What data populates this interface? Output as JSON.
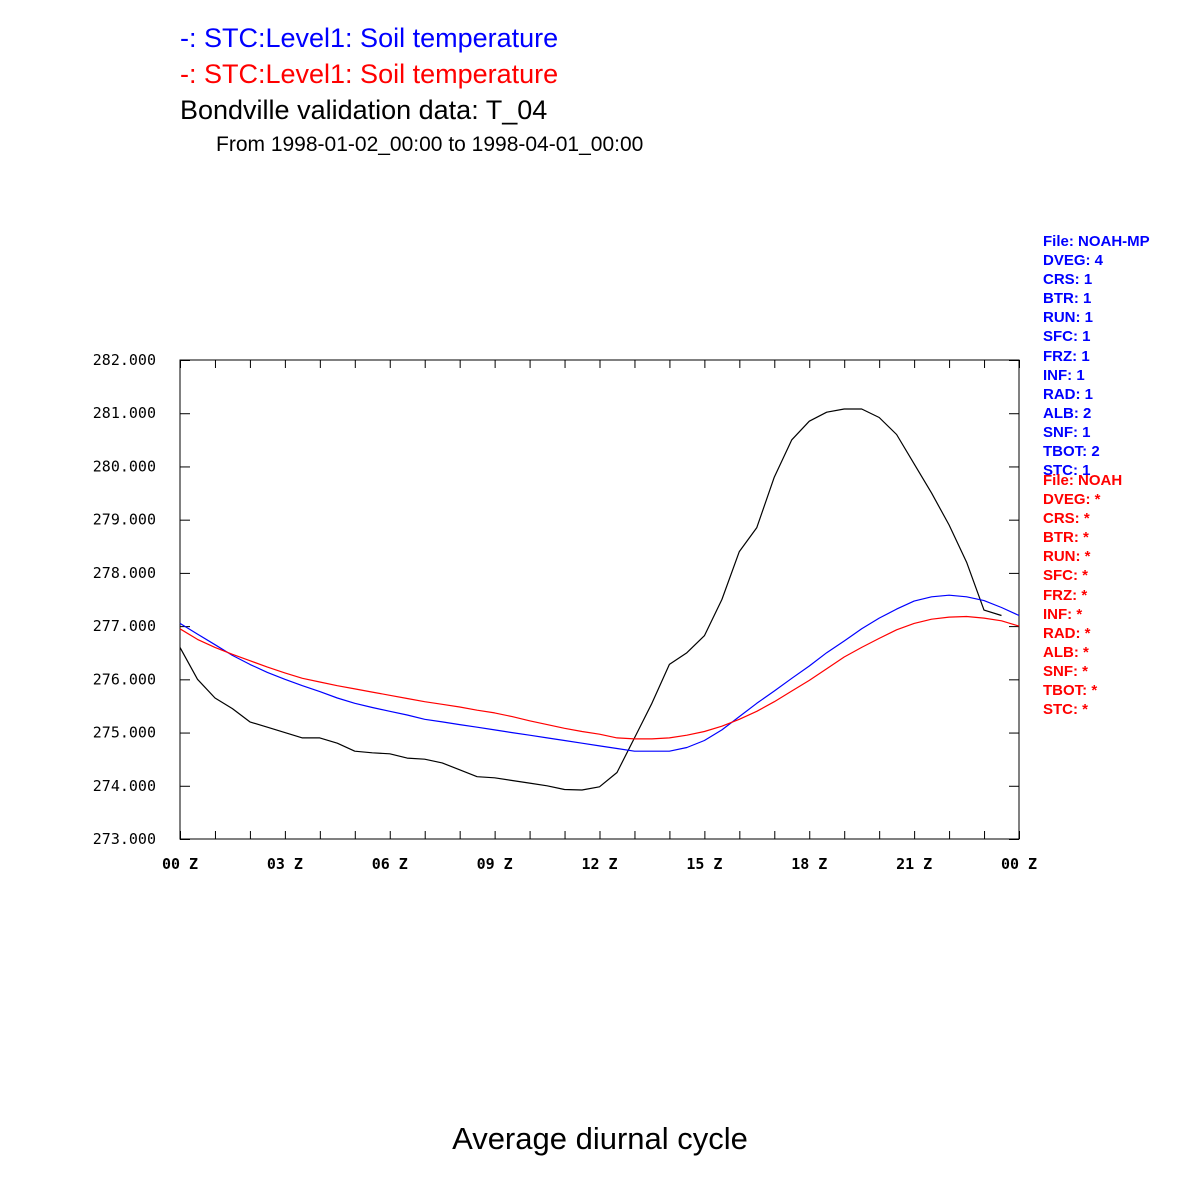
{
  "legend": [
    {
      "label": "-: STC:Level1: Soil temperature",
      "color": "#0000ff"
    },
    {
      "label": "-: STC:Level1: Soil temperature",
      "color": "#ff0000"
    }
  ],
  "title": "Bondville validation data: T_04",
  "subtitle": "From 1998-01-02_00:00 to 1998-04-01_00:00",
  "bottom_title": "Average diurnal cycle",
  "file_info": [
    {
      "color": "#0000ff",
      "lines": [
        "File: NOAH-MP",
        "DVEG: 4",
        "CRS: 1",
        "BTR: 1",
        "RUN: 1",
        "SFC: 1",
        "FRZ: 1",
        "INF: 1",
        "RAD: 1",
        "ALB: 2",
        "SNF: 1",
        "TBOT: 2",
        "STC: 1"
      ]
    },
    {
      "color": "#ff0000",
      "lines": [
        "File: NOAH",
        "DVEG: *",
        "CRS: *",
        "BTR: *",
        "RUN: *",
        "SFC: *",
        "FRZ: *",
        "INF: *",
        "RAD: *",
        "ALB: *",
        "SNF: *",
        "TBOT: *",
        "STC: *"
      ]
    }
  ],
  "chart_data": {
    "type": "line",
    "ylim": [
      273,
      282
    ],
    "xlim": [
      0,
      24
    ],
    "yticks": [
      273,
      274,
      275,
      276,
      277,
      278,
      279,
      280,
      281,
      282
    ],
    "ytick_labels": [
      "273.000",
      "274.000",
      "275.000",
      "276.000",
      "277.000",
      "278.000",
      "279.000",
      "280.000",
      "281.000",
      "282.000"
    ],
    "xticks": [
      0,
      3,
      6,
      9,
      12,
      15,
      18,
      21,
      24
    ],
    "xtick_labels": [
      "00 Z",
      "03 Z",
      "06 Z",
      "09 Z",
      "12 Z",
      "15 Z",
      "18 Z",
      "21 Z",
      "00 Z"
    ],
    "grid": false,
    "series": [
      {
        "color": "#000000",
        "x": [
          0,
          0.5,
          1,
          1.5,
          2,
          2.5,
          3,
          3.5,
          4,
          4.5,
          5,
          5.5,
          6,
          6.5,
          7,
          7.5,
          8,
          8.5,
          9,
          9.5,
          10,
          10.5,
          11,
          11.5,
          12,
          12.5,
          13,
          13.5,
          14,
          14.5,
          15,
          15.5,
          16,
          16.5,
          17,
          17.5,
          18,
          18.5,
          19,
          19.5,
          20,
          20.5,
          21,
          21.5,
          22,
          22.5,
          23,
          23.5
        ],
        "y": [
          276.6,
          276.0,
          275.65,
          275.45,
          275.2,
          275.1,
          275.0,
          274.9,
          274.9,
          274.8,
          274.65,
          274.62,
          274.6,
          274.52,
          274.5,
          274.43,
          274.3,
          274.17,
          274.15,
          274.1,
          274.05,
          274.0,
          273.93,
          273.92,
          273.98,
          274.25,
          274.9,
          275.55,
          276.28,
          276.5,
          276.82,
          277.5,
          278.4,
          278.85,
          279.8,
          280.5,
          280.85,
          281.02,
          281.08,
          281.08,
          280.92,
          280.6,
          280.05,
          279.5,
          278.9,
          278.2,
          277.3,
          277.2
        ]
      },
      {
        "color": "#0000ff",
        "x": [
          0,
          0.5,
          1,
          1.5,
          2,
          2.5,
          3,
          3.5,
          4,
          4.5,
          5,
          5.5,
          6,
          6.5,
          7,
          7.5,
          8,
          8.5,
          9,
          9.5,
          10,
          10.5,
          11,
          11.5,
          12,
          12.5,
          13,
          13.5,
          14,
          14.5,
          15,
          15.5,
          16,
          16.5,
          17,
          17.5,
          18,
          18.5,
          19,
          19.5,
          20,
          20.5,
          21,
          21.5,
          22,
          22.5,
          23,
          23.5,
          24
        ],
        "y": [
          277.05,
          276.85,
          276.65,
          276.45,
          276.28,
          276.13,
          276.0,
          275.88,
          275.77,
          275.65,
          275.55,
          275.47,
          275.4,
          275.33,
          275.25,
          275.2,
          275.15,
          275.1,
          275.05,
          275.0,
          274.95,
          274.9,
          274.85,
          274.8,
          274.75,
          274.7,
          274.65,
          274.65,
          274.65,
          274.72,
          274.85,
          275.05,
          275.3,
          275.55,
          275.78,
          276.02,
          276.25,
          276.5,
          276.72,
          276.95,
          277.15,
          277.32,
          277.47,
          277.55,
          277.58,
          277.55,
          277.48,
          277.35,
          277.2
        ]
      },
      {
        "color": "#ff0000",
        "x": [
          0,
          0.5,
          1,
          1.5,
          2,
          2.5,
          3,
          3.5,
          4,
          4.5,
          5,
          5.5,
          6,
          6.5,
          7,
          7.5,
          8,
          8.5,
          9,
          9.5,
          10,
          10.5,
          11,
          11.5,
          12,
          12.5,
          13,
          13.5,
          14,
          14.5,
          15,
          15.5,
          16,
          16.5,
          17,
          17.5,
          18,
          18.5,
          19,
          19.5,
          20,
          20.5,
          21,
          21.5,
          22,
          22.5,
          23,
          23.5,
          24
        ],
        "y": [
          276.95,
          276.75,
          276.6,
          276.47,
          276.35,
          276.23,
          276.12,
          276.02,
          275.95,
          275.88,
          275.82,
          275.76,
          275.7,
          275.64,
          275.58,
          275.53,
          275.48,
          275.42,
          275.37,
          275.3,
          275.22,
          275.15,
          275.08,
          275.02,
          274.97,
          274.9,
          274.88,
          274.88,
          274.9,
          274.95,
          275.02,
          275.12,
          275.25,
          275.4,
          275.58,
          275.78,
          275.98,
          276.2,
          276.42,
          276.6,
          276.77,
          276.93,
          277.05,
          277.13,
          277.17,
          277.18,
          277.15,
          277.1,
          277.0
        ]
      }
    ]
  }
}
